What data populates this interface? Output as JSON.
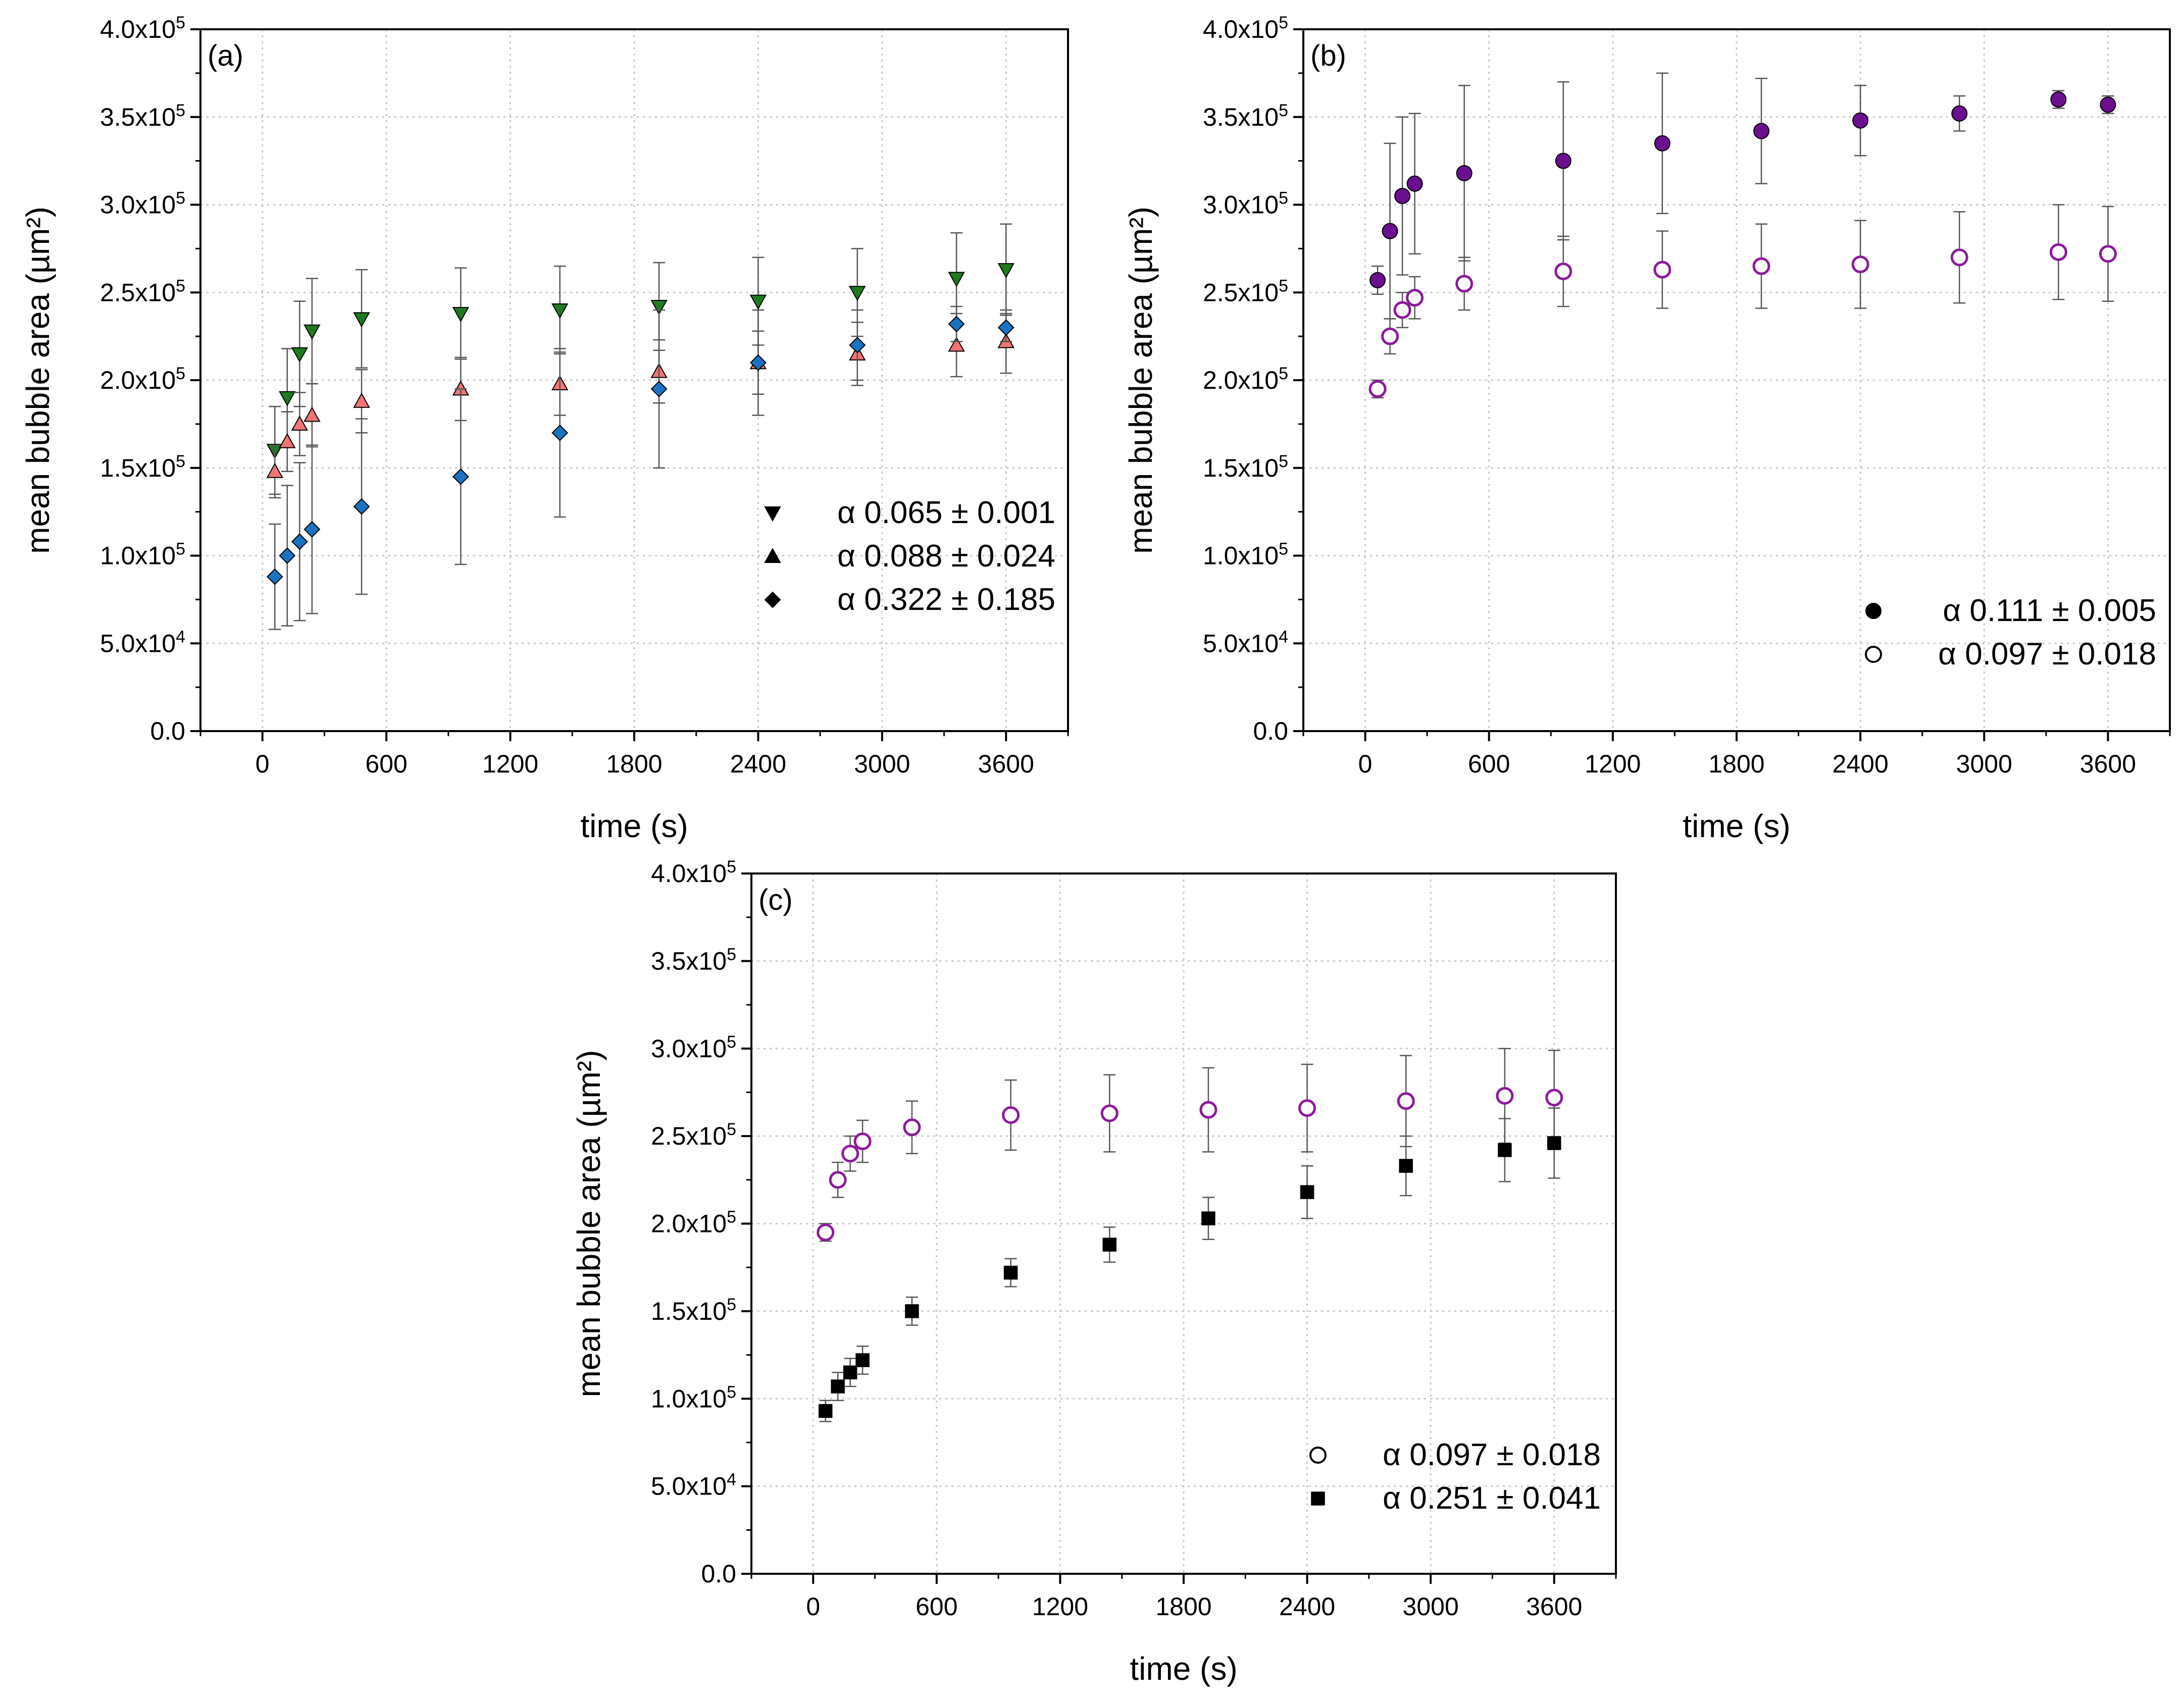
{
  "chart_data": [
    {
      "panel": "(a)",
      "type": "scatter",
      "xlabel": "time (s)",
      "ylabel": "mean bubble area (µm²)",
      "xlim": [
        -300,
        3900
      ],
      "ylim": [
        0,
        400000
      ],
      "xticks": [
        "0",
        "600",
        "1200",
        "1800",
        "2400",
        "3000",
        "3600"
      ],
      "yticks": [
        "0.0",
        "5.0x10^4",
        "1.0x10^5",
        "1.5x10^5",
        "2.0x10^5",
        "2.5x10^5",
        "3.0x10^5",
        "3.5x10^5",
        "4.0x10^5"
      ],
      "grid": true,
      "legend_position": "bottom-right",
      "series": [
        {
          "name": "α 0.065 ± 0.001",
          "marker": "triangle-down",
          "color": "#1f7a1f",
          "x": [
            60,
            120,
            180,
            240,
            480,
            960,
            1440,
            1920,
            2400,
            2880,
            3360,
            3600
          ],
          "y": [
            160000,
            190000,
            215000,
            228000,
            235000,
            238000,
            240000,
            242000,
            245000,
            250000,
            258000,
            263000
          ],
          "err": [
            25000,
            28000,
            30000,
            30000,
            28000,
            26000,
            25000,
            25000,
            25000,
            25000,
            26000,
            26000
          ]
        },
        {
          "name": "α 0.088 ± 0.024",
          "marker": "triangle-up",
          "color": "#f07575",
          "x": [
            60,
            120,
            180,
            240,
            480,
            960,
            1440,
            1920,
            2400,
            2880,
            3360,
            3600
          ],
          "y": [
            148000,
            165000,
            175000,
            180000,
            188000,
            195000,
            198000,
            205000,
            210000,
            215000,
            220000,
            222000
          ],
          "err": [
            15000,
            17000,
            18000,
            18000,
            18000,
            18000,
            18000,
            18000,
            18000,
            18000,
            18000,
            18000
          ]
        },
        {
          "name": "α 0.322 ± 0.185",
          "marker": "diamond",
          "color": "#1a72c0",
          "x": [
            60,
            120,
            180,
            240,
            480,
            960,
            1440,
            1920,
            2400,
            2880,
            3360,
            3600
          ],
          "y": [
            88000,
            100000,
            108000,
            115000,
            128000,
            145000,
            170000,
            195000,
            210000,
            220000,
            232000,
            230000
          ],
          "err": [
            30000,
            40000,
            45000,
            48000,
            50000,
            50000,
            48000,
            45000,
            30000,
            20000,
            10000,
            8000
          ]
        }
      ]
    },
    {
      "panel": "(b)",
      "type": "scatter",
      "xlabel": "time (s)",
      "ylabel": "mean bubble area (µm²)",
      "xlim": [
        -300,
        3900
      ],
      "ylim": [
        0,
        400000
      ],
      "xticks": [
        "0",
        "600",
        "1200",
        "1800",
        "2400",
        "3000",
        "3600"
      ],
      "yticks": [
        "0.0",
        "5.0x10^4",
        "1.0x10^5",
        "1.5x10^5",
        "2.0x10^5",
        "2.5x10^5",
        "3.0x10^5",
        "3.5x10^5",
        "4.0x10^5"
      ],
      "grid": true,
      "legend_position": "bottom-right",
      "series": [
        {
          "name": "α 0.111 ± 0.005",
          "marker": "circle-filled",
          "color": "#6a0f8e",
          "x": [
            60,
            120,
            180,
            240,
            480,
            960,
            1440,
            1920,
            2400,
            2880,
            3360,
            3600
          ],
          "y": [
            257000,
            285000,
            305000,
            312000,
            318000,
            325000,
            335000,
            342000,
            348000,
            352000,
            360000,
            357000
          ],
          "err": [
            8000,
            50000,
            45000,
            40000,
            50000,
            45000,
            40000,
            30000,
            20000,
            10000,
            5000,
            5000
          ]
        },
        {
          "name": "α 0.097 ± 0.018",
          "marker": "circle-open",
          "color": "#8b1a9b",
          "x": [
            60,
            120,
            180,
            240,
            480,
            960,
            1440,
            1920,
            2400,
            2880,
            3360,
            3600
          ],
          "y": [
            195000,
            225000,
            240000,
            247000,
            255000,
            262000,
            263000,
            265000,
            266000,
            270000,
            273000,
            272000
          ],
          "err": [
            5000,
            10000,
            10000,
            12000,
            15000,
            20000,
            22000,
            24000,
            25000,
            26000,
            27000,
            27000
          ]
        }
      ]
    },
    {
      "panel": "(c)",
      "type": "scatter",
      "xlabel": "time (s)",
      "ylabel": "mean bubble area (µm²)",
      "xlim": [
        -300,
        3900
      ],
      "ylim": [
        0,
        400000
      ],
      "xticks": [
        "0",
        "600",
        "1200",
        "1800",
        "2400",
        "3000",
        "3600"
      ],
      "yticks": [
        "0.0",
        "5.0x10^4",
        "1.0x10^5",
        "1.5x10^5",
        "2.0x10^5",
        "2.5x10^5",
        "3.0x10^5",
        "3.5x10^5",
        "4.0x10^5"
      ],
      "grid": true,
      "legend_position": "bottom-right",
      "series": [
        {
          "name": "α 0.097 ± 0.018",
          "marker": "circle-open",
          "color": "#8b1a9b",
          "x": [
            60,
            120,
            180,
            240,
            480,
            960,
            1440,
            1920,
            2400,
            2880,
            3360,
            3600
          ],
          "y": [
            195000,
            225000,
            240000,
            247000,
            255000,
            262000,
            263000,
            265000,
            266000,
            270000,
            273000,
            272000
          ],
          "err": [
            5000,
            10000,
            10000,
            12000,
            15000,
            20000,
            22000,
            24000,
            25000,
            26000,
            27000,
            27000
          ]
        },
        {
          "name": "α 0.251 ± 0.041",
          "marker": "square",
          "color": "#000000",
          "x": [
            60,
            120,
            180,
            240,
            480,
            960,
            1440,
            1920,
            2400,
            2880,
            3360,
            3600
          ],
          "y": [
            93000,
            107000,
            115000,
            122000,
            150000,
            172000,
            188000,
            203000,
            218000,
            233000,
            242000,
            246000
          ],
          "err": [
            6000,
            8000,
            8000,
            8000,
            8000,
            8000,
            10000,
            12000,
            15000,
            17000,
            18000,
            20000
          ]
        }
      ]
    }
  ]
}
